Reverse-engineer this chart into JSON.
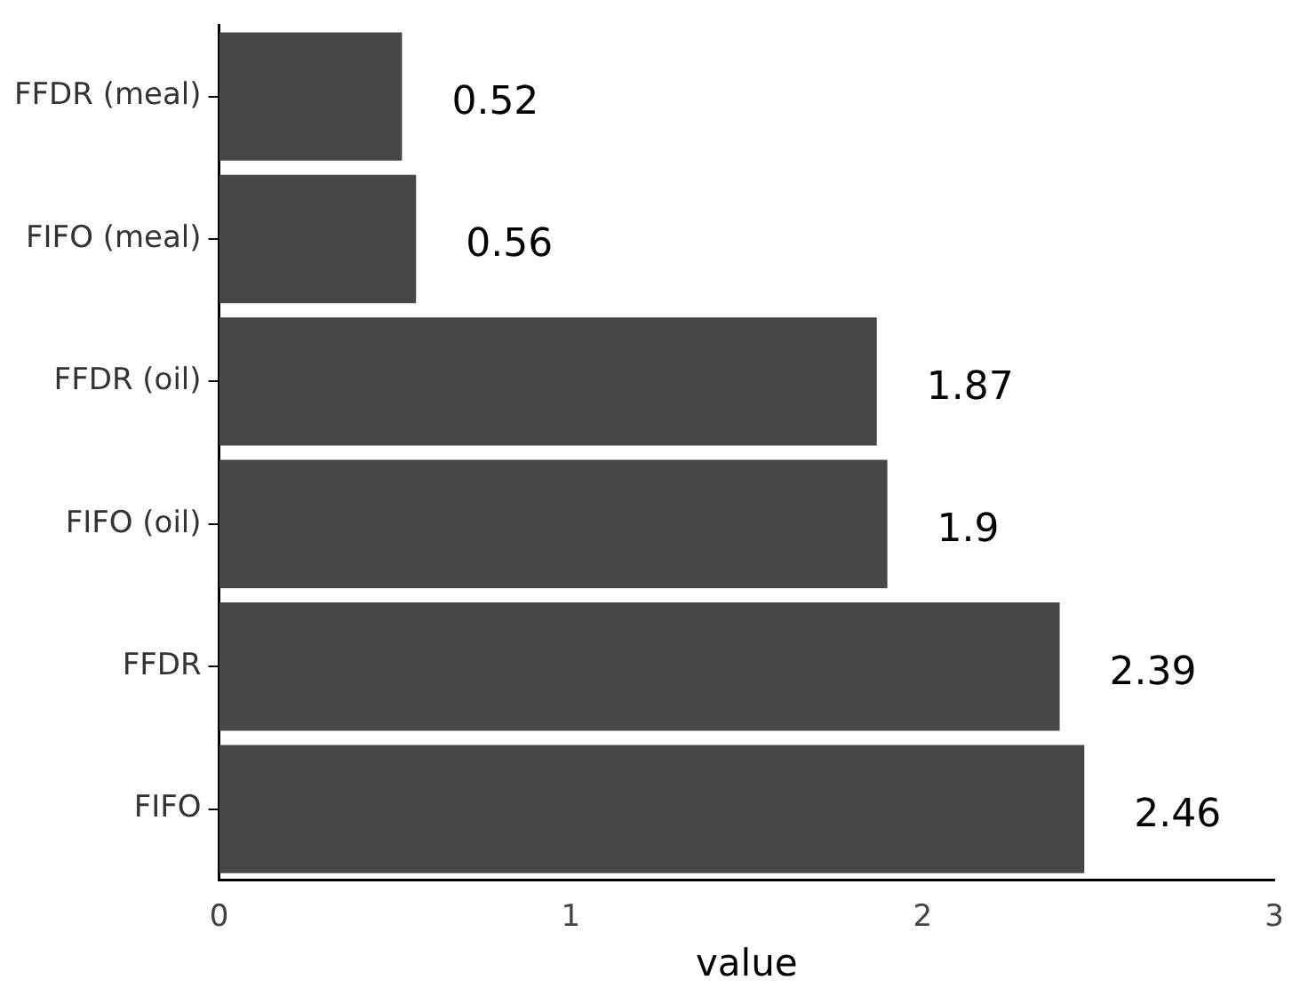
{
  "chart_data": {
    "type": "bar",
    "orientation": "horizontal",
    "xlabel": "value",
    "categories": [
      "FFDR (meal)",
      "FIFO (meal)",
      "FFDR (oil)",
      "FIFO (oil)",
      "FFDR",
      "FIFO"
    ],
    "values": [
      0.52,
      0.56,
      1.87,
      1.9,
      2.39,
      2.46
    ],
    "color": "#474747",
    "xlim": [
      0,
      3
    ],
    "xticks": [
      0,
      1,
      2,
      3
    ],
    "grid": false,
    "legend": false,
    "data_labels": true
  }
}
